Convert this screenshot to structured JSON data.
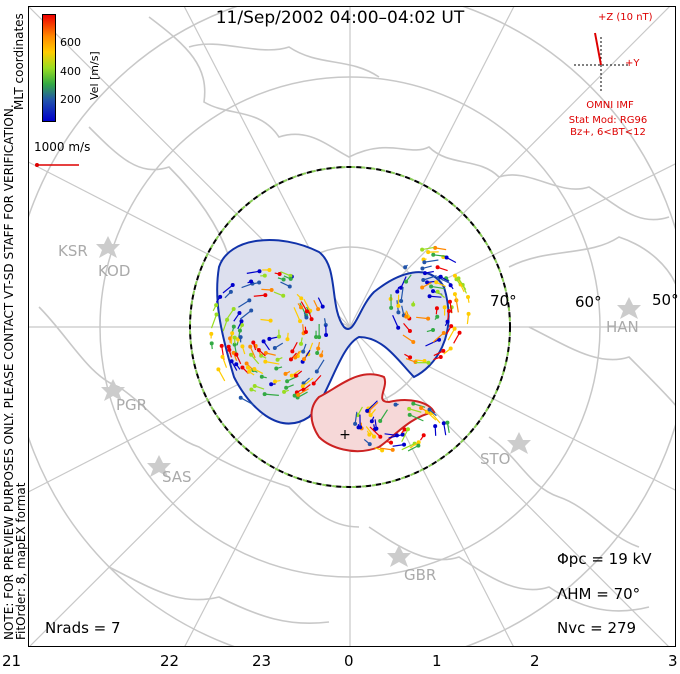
{
  "title": "11/Sep/2002 04:00–04:02 UT",
  "colorbar": {
    "unit_label": "Vel [m/s]",
    "ticks": [
      "600",
      "400",
      "200"
    ],
    "colors": [
      "#0000cc",
      "#2255aa",
      "#33aa44",
      "#99dd22",
      "#ffcc00",
      "#ff8800",
      "#ee0000"
    ]
  },
  "mlt_label": "MLT coordinates",
  "ref_vector": "1000 m/s",
  "notes": {
    "preview": "NOTE: FOR PREVIEW PURPOSES ONLY. PLEASE CONTACT VT-SD STAFF FOR VERIFICATION.",
    "fit": "FitOrder: 8, mapEX format"
  },
  "imf": {
    "scale": "+Z (10 nT)",
    "y_axis": "+Y",
    "source": "OMNI IMF",
    "model": "Stat Mod: RG96",
    "condition": "Bz+, 6<BT<12"
  },
  "latitudes": [
    "70°",
    "60°",
    "50°"
  ],
  "radars": [
    "KSR",
    "KOD",
    "PGR",
    "SAS",
    "STO",
    "HAN",
    "GBR"
  ],
  "stats": {
    "phi_pc": "Φpc = 19 kV",
    "lambda_hm": "ΛHM = 70°",
    "n_vc": "Nvc = 279",
    "n_rads": "Nrads = 7"
  },
  "mlt_ticks": [
    "21",
    "22",
    "23",
    "0",
    "1",
    "2",
    "3"
  ]
}
